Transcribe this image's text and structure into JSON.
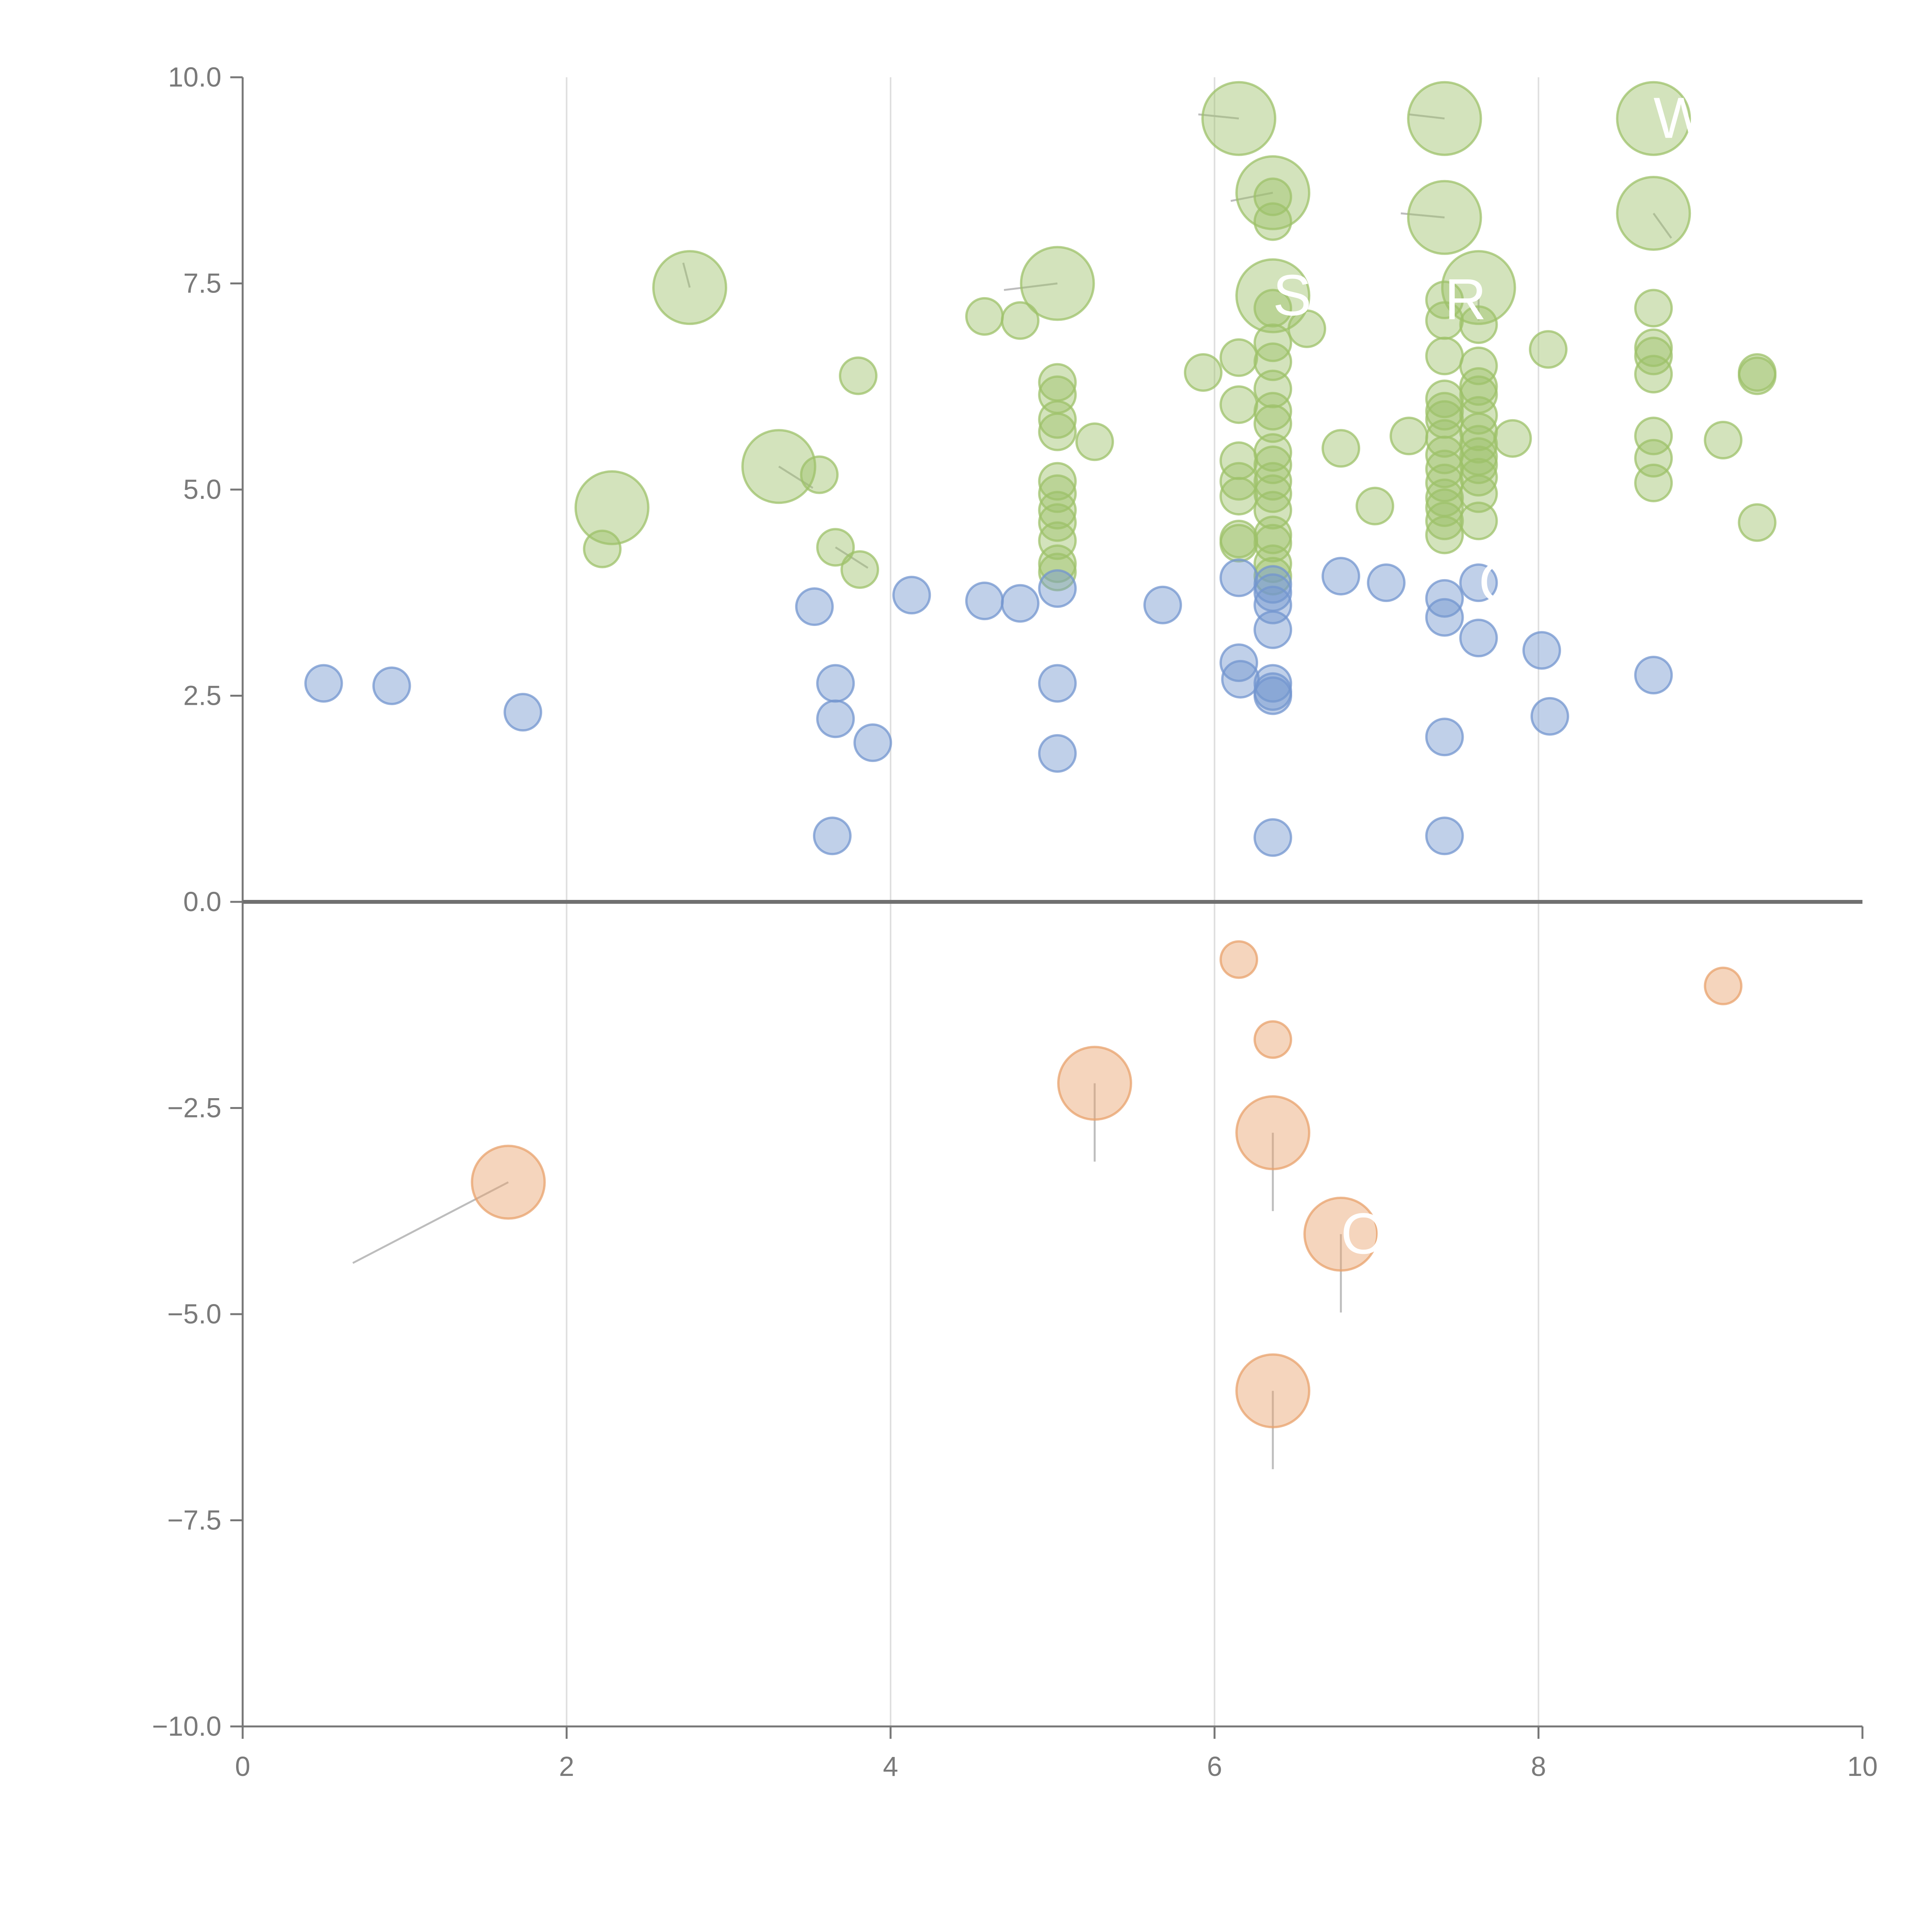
{
  "colors": {
    "positive_high": "#9dc26a",
    "positive_low": "#7396cf",
    "negative": "#e8a26c",
    "axis": "#777777",
    "grid": "#dedede",
    "zero_line": "#707070",
    "label_text": "#ffffff"
  },
  "chart_data": {
    "type": "scatter",
    "title": "",
    "xlabel": "",
    "ylabel": "",
    "xlim": [
      0,
      10
    ],
    "ylim": [
      -10,
      10
    ],
    "x_ticks": [
      "0",
      "2",
      "4",
      "6",
      "8",
      "10"
    ],
    "y_ticks": [
      "10.0",
      "7.5",
      "5.0",
      "2.5",
      "0.0",
      "−2.5",
      "−5.0",
      "−7.5",
      "−10.0"
    ],
    "grid": "vertical",
    "zero_line": true,
    "series": [
      {
        "name": "high",
        "color_key": "positive_high",
        "points": [
          [
            6.15,
            9.5,
            3
          ],
          [
            7.42,
            9.5,
            3
          ],
          [
            8.71,
            9.5,
            3
          ],
          [
            6.36,
            8.6,
            3
          ],
          [
            7.42,
            8.3,
            3
          ],
          [
            8.71,
            8.35,
            3
          ],
          [
            2.76,
            7.45,
            3
          ],
          [
            5.03,
            7.5,
            3
          ],
          [
            6.36,
            7.35,
            3
          ],
          [
            7.63,
            7.45,
            3
          ],
          [
            2.28,
            4.78,
            3
          ],
          [
            3.31,
            5.28,
            3
          ],
          [
            4.58,
            7.1,
            1
          ],
          [
            4.8,
            7.05,
            1
          ],
          [
            3.8,
            6.38,
            1
          ],
          [
            3.56,
            5.18,
            1
          ],
          [
            2.22,
            4.28,
            1
          ],
          [
            3.66,
            4.3,
            1
          ],
          [
            3.81,
            4.03,
            1
          ],
          [
            5.03,
            6.3,
            1
          ],
          [
            5.03,
            6.15,
            1
          ],
          [
            5.03,
            5.85,
            1
          ],
          [
            5.03,
            5.7,
            1
          ],
          [
            5.03,
            5.1,
            1
          ],
          [
            5.03,
            4.95,
            1
          ],
          [
            5.03,
            4.75,
            1
          ],
          [
            5.03,
            4.6,
            1
          ],
          [
            5.03,
            4.38,
            1
          ],
          [
            5.03,
            4.1,
            1
          ],
          [
            5.03,
            4.0,
            1
          ],
          [
            5.26,
            5.58,
            1
          ],
          [
            5.93,
            6.42,
            1
          ],
          [
            6.15,
            6.6,
            1
          ],
          [
            6.15,
            6.03,
            1
          ],
          [
            6.15,
            5.35,
            1
          ],
          [
            6.15,
            5.1,
            1
          ],
          [
            6.15,
            4.92,
            1
          ],
          [
            6.15,
            4.4,
            1
          ],
          [
            6.15,
            4.35,
            1
          ],
          [
            6.36,
            8.55,
            1
          ],
          [
            6.36,
            8.25,
            1
          ],
          [
            6.36,
            7.2,
            1
          ],
          [
            6.36,
            6.78,
            1
          ],
          [
            6.36,
            6.55,
            1
          ],
          [
            6.36,
            6.22,
            1
          ],
          [
            6.36,
            5.95,
            1
          ],
          [
            6.36,
            5.8,
            1
          ],
          [
            6.36,
            5.45,
            1
          ],
          [
            6.36,
            5.3,
            1
          ],
          [
            6.36,
            5.1,
            1
          ],
          [
            6.36,
            4.95,
            1
          ],
          [
            6.36,
            4.75,
            1
          ],
          [
            6.36,
            4.45,
            1
          ],
          [
            6.36,
            4.35,
            1
          ],
          [
            6.36,
            4.1,
            1
          ],
          [
            6.36,
            3.95,
            1
          ],
          [
            6.57,
            6.95,
            1
          ],
          [
            6.78,
            5.5,
            1
          ],
          [
            6.99,
            4.8,
            1
          ],
          [
            7.2,
            5.65,
            1
          ],
          [
            7.42,
            7.3,
            1
          ],
          [
            7.42,
            7.05,
            1
          ],
          [
            7.42,
            6.62,
            1
          ],
          [
            7.42,
            6.1,
            1
          ],
          [
            7.42,
            5.95,
            1
          ],
          [
            7.42,
            5.85,
            1
          ],
          [
            7.42,
            5.62,
            1
          ],
          [
            7.42,
            5.42,
            1
          ],
          [
            7.42,
            5.25,
            1
          ],
          [
            7.42,
            5.08,
            1
          ],
          [
            7.42,
            4.9,
            1
          ],
          [
            7.42,
            4.78,
            1
          ],
          [
            7.42,
            4.62,
            1
          ],
          [
            7.42,
            4.45,
            1
          ],
          [
            7.63,
            7.0,
            1
          ],
          [
            7.63,
            6.5,
            1
          ],
          [
            7.63,
            6.25,
            1
          ],
          [
            7.63,
            6.15,
            1
          ],
          [
            7.63,
            5.9,
            1
          ],
          [
            7.63,
            5.7,
            1
          ],
          [
            7.63,
            5.55,
            1
          ],
          [
            7.63,
            5.4,
            1
          ],
          [
            7.63,
            5.3,
            1
          ],
          [
            7.63,
            5.15,
            1
          ],
          [
            7.63,
            4.95,
            1
          ],
          [
            7.63,
            4.62,
            1
          ],
          [
            7.84,
            5.62,
            1
          ],
          [
            8.06,
            6.7,
            1
          ],
          [
            8.71,
            7.2,
            1
          ],
          [
            8.71,
            6.72,
            1
          ],
          [
            8.71,
            6.62,
            1
          ],
          [
            8.71,
            6.4,
            1
          ],
          [
            8.71,
            5.65,
            1
          ],
          [
            8.71,
            5.38,
            1
          ],
          [
            8.71,
            5.08,
            1
          ],
          [
            9.14,
            5.6,
            1
          ],
          [
            9.35,
            6.42,
            1
          ],
          [
            9.35,
            6.38,
            1
          ],
          [
            9.35,
            4.6,
            1
          ]
        ]
      },
      {
        "name": "low",
        "color_key": "positive_low",
        "points": [
          [
            0.5,
            2.65,
            1
          ],
          [
            0.92,
            2.62,
            1
          ],
          [
            1.73,
            2.3,
            1
          ],
          [
            3.53,
            3.58,
            1
          ],
          [
            3.66,
            2.65,
            1
          ],
          [
            3.66,
            2.22,
            1
          ],
          [
            3.64,
            0.8,
            1
          ],
          [
            3.89,
            1.93,
            1
          ],
          [
            4.13,
            3.72,
            1
          ],
          [
            4.58,
            3.65,
            1
          ],
          [
            4.8,
            3.62,
            1
          ],
          [
            5.03,
            3.8,
            1
          ],
          [
            5.03,
            2.65,
            1
          ],
          [
            5.03,
            1.8,
            1
          ],
          [
            5.68,
            3.6,
            1
          ],
          [
            6.15,
            3.93,
            1
          ],
          [
            6.15,
            2.9,
            1
          ],
          [
            6.16,
            2.7,
            1
          ],
          [
            6.36,
            3.85,
            1
          ],
          [
            6.36,
            3.75,
            1
          ],
          [
            6.36,
            3.6,
            1
          ],
          [
            6.36,
            3.3,
            1
          ],
          [
            6.36,
            2.65,
            1
          ],
          [
            6.36,
            2.55,
            1
          ],
          [
            6.36,
            2.5,
            1
          ],
          [
            6.36,
            0.78,
            1
          ],
          [
            6.78,
            3.95,
            1
          ],
          [
            7.06,
            3.87,
            1
          ],
          [
            7.42,
            3.68,
            1
          ],
          [
            7.42,
            3.45,
            1
          ],
          [
            7.42,
            2.0,
            1
          ],
          [
            7.42,
            0.8,
            1
          ],
          [
            7.63,
            3.87,
            1
          ],
          [
            7.63,
            3.2,
            1
          ],
          [
            8.02,
            3.05,
            1
          ],
          [
            8.07,
            2.25,
            1
          ],
          [
            8.71,
            2.75,
            1
          ]
        ]
      },
      {
        "name": "negative",
        "color_key": "negative",
        "points": [
          [
            6.15,
            -0.7,
            1
          ],
          [
            6.36,
            -1.67,
            1
          ],
          [
            9.14,
            -1.02,
            1
          ],
          [
            1.64,
            -3.4,
            3
          ],
          [
            5.26,
            -2.2,
            3
          ],
          [
            6.36,
            -2.8,
            3
          ],
          [
            6.78,
            -4.03,
            3
          ],
          [
            6.36,
            -5.93,
            3
          ]
        ]
      }
    ],
    "leader_lines": [
      [
        2.76,
        7.45,
        2.72,
        7.75
      ],
      [
        5.03,
        7.5,
        4.7,
        7.42
      ],
      [
        6.15,
        9.5,
        5.9,
        9.55
      ],
      [
        6.36,
        8.6,
        6.1,
        8.5
      ],
      [
        7.42,
        9.5,
        7.2,
        9.55
      ],
      [
        7.42,
        8.3,
        7.15,
        8.35
      ],
      [
        8.71,
        8.35,
        8.82,
        8.05
      ],
      [
        7.63,
        7.45,
        7.63,
        7.05
      ],
      [
        3.31,
        5.28,
        3.52,
        5.02
      ],
      [
        3.66,
        4.3,
        3.86,
        4.05
      ],
      [
        1.64,
        -3.4,
        0.68,
        -4.38
      ],
      [
        5.26,
        -2.2,
        5.26,
        -3.15
      ],
      [
        6.36,
        -2.8,
        6.36,
        -3.75
      ],
      [
        6.78,
        -4.03,
        6.78,
        -4.98
      ],
      [
        6.36,
        -5.93,
        6.36,
        -6.88
      ]
    ],
    "annotations": [
      {
        "text": "W",
        "x": 8.71,
        "y": 9.5
      },
      {
        "text": "SO",
        "x": 6.36,
        "y": 7.35
      },
      {
        "text": "R",
        "x": 7.42,
        "y": 7.3
      },
      {
        "text": "C",
        "x": 7.63,
        "y": 3.87
      },
      {
        "text": "O",
        "x": 6.78,
        "y": -4.03
      }
    ]
  }
}
